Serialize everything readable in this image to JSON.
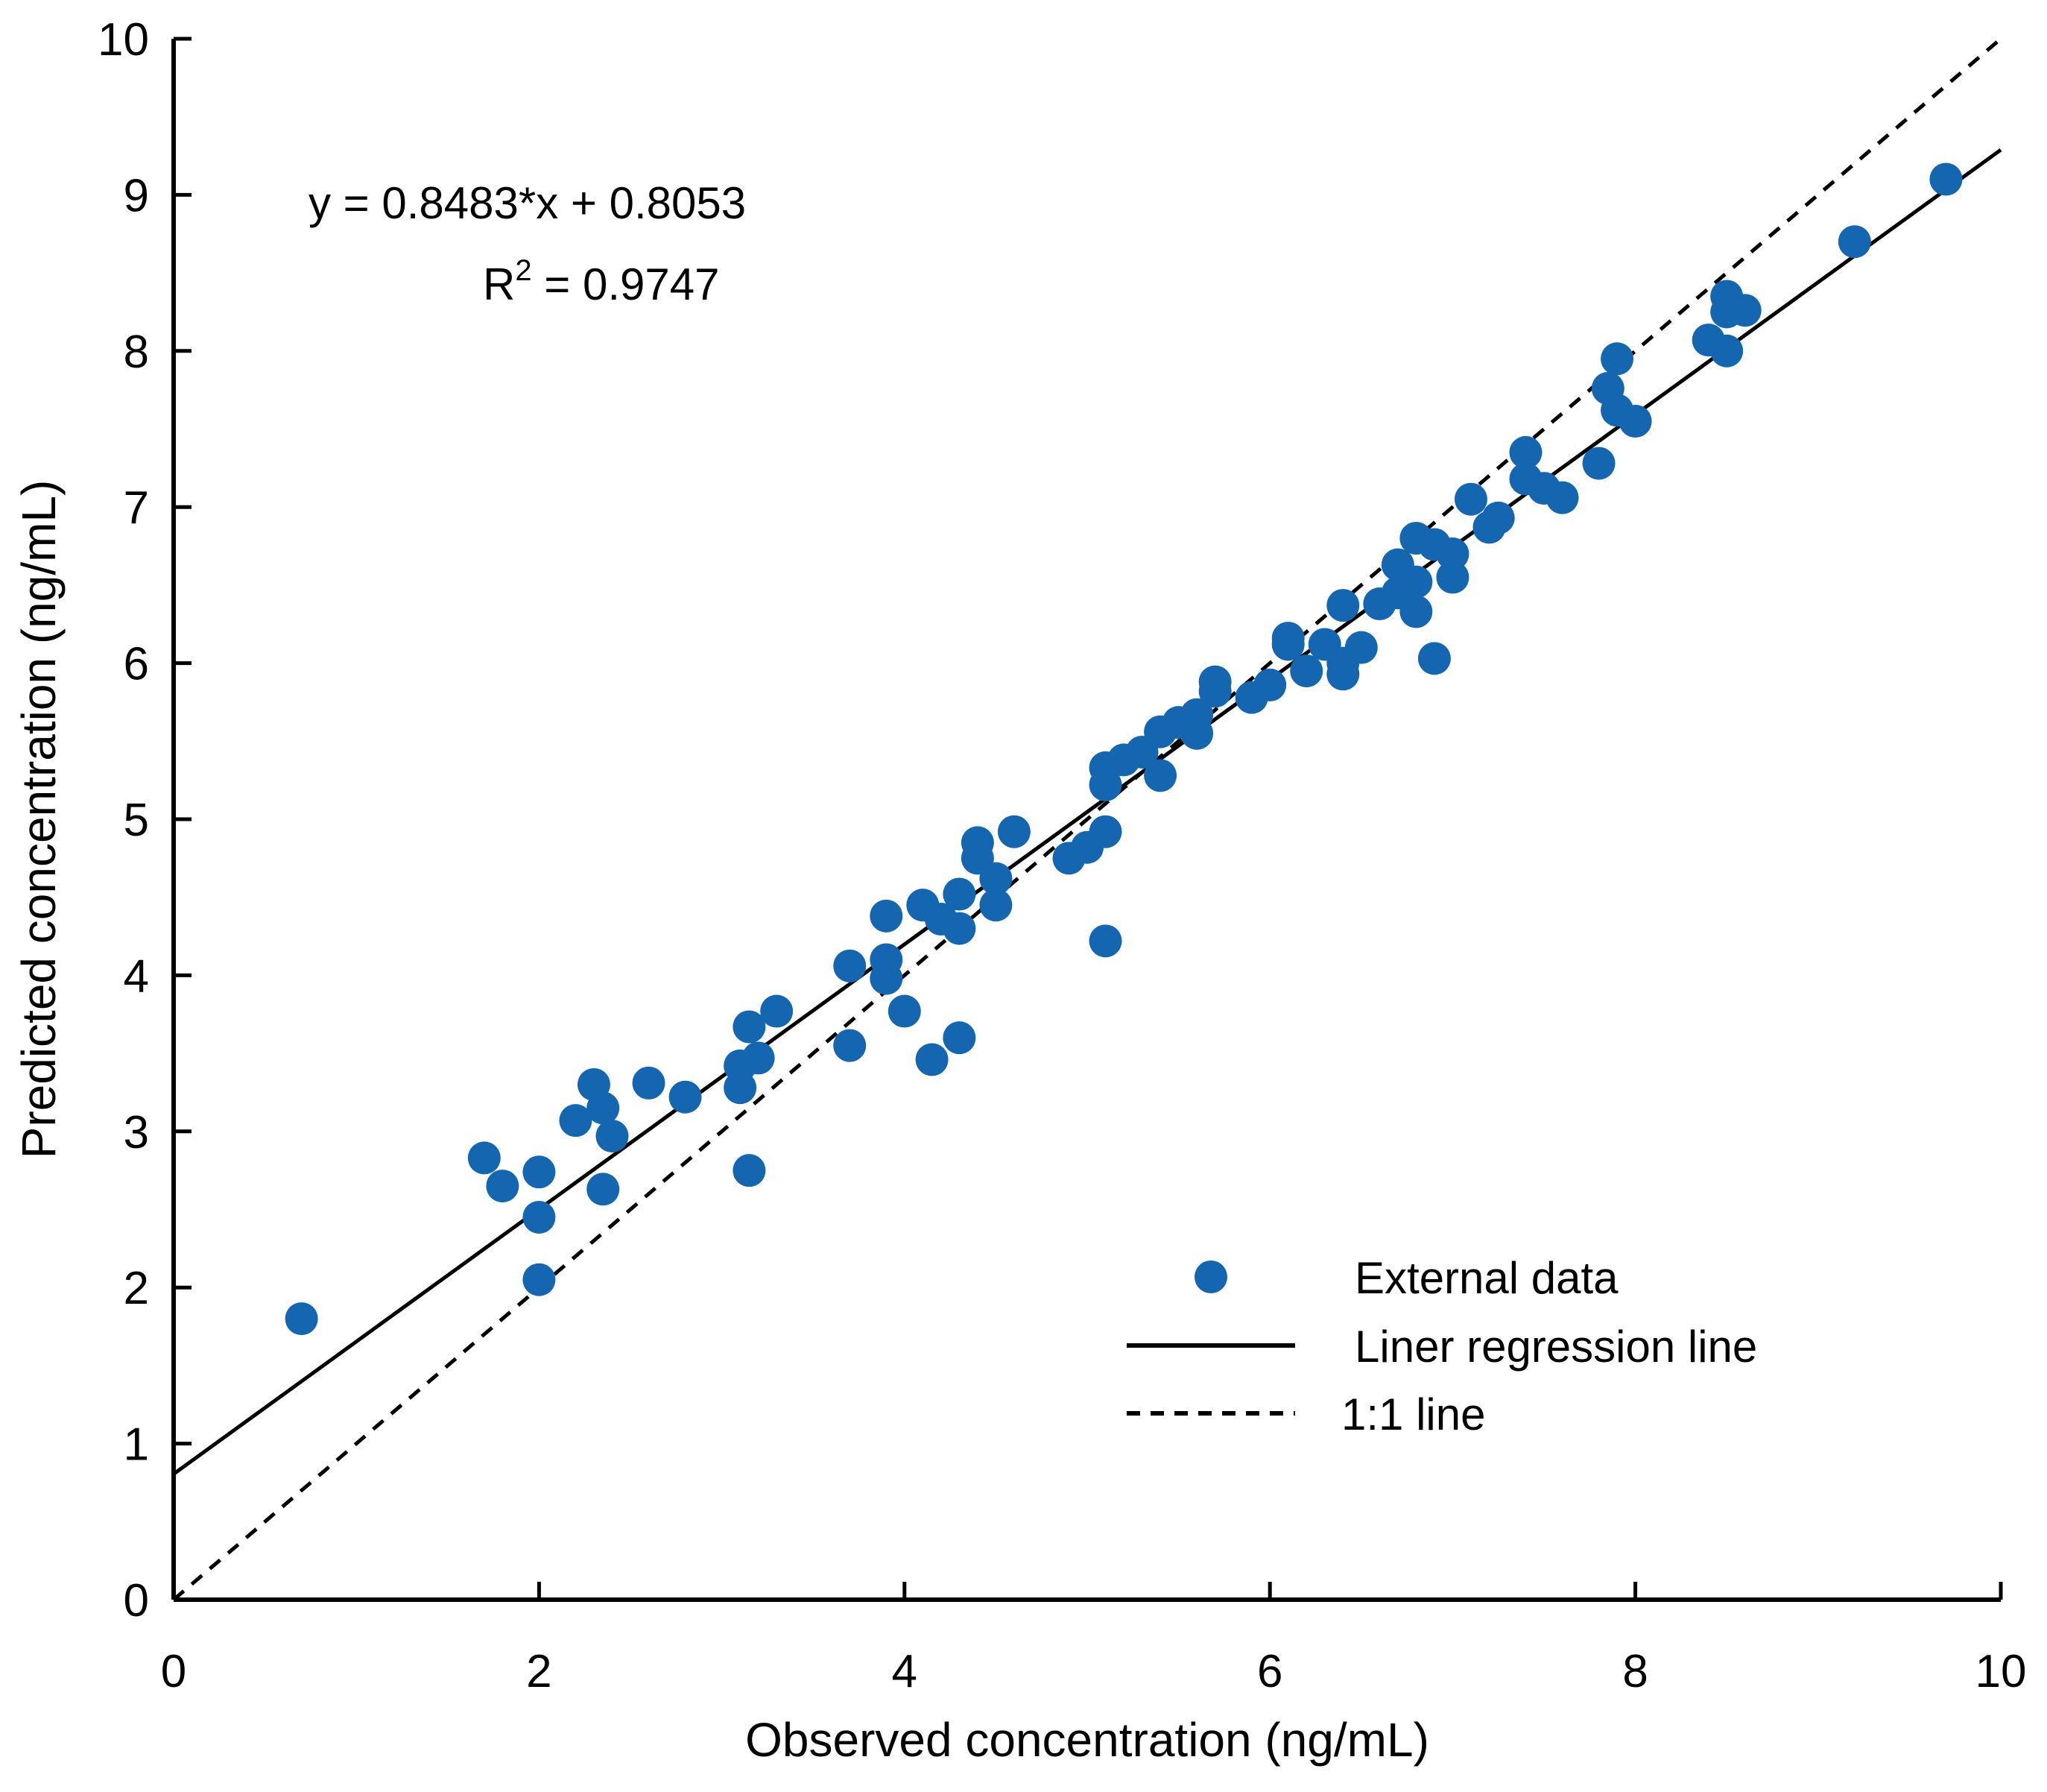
{
  "chart_data": {
    "type": "scatter",
    "xlabel": "Observed concentration (ng/mL)",
    "ylabel": "Predicted concentration (ng/mL)",
    "xlim": [
      0,
      10
    ],
    "ylim": [
      0,
      10
    ],
    "x_ticks": [
      0,
      2,
      4,
      6,
      8,
      10
    ],
    "y_ticks": [
      0,
      1,
      2,
      3,
      4,
      5,
      6,
      7,
      8,
      9,
      10
    ],
    "grid": false,
    "legend_position": "bottom-right",
    "annotation": {
      "equation": "y = 0.8483*x + 0.8053",
      "r2_prefix": "R",
      "r2_superscript": "2",
      "r2_value": " = 0.9747"
    },
    "legend": {
      "scatter_label": "External data",
      "regression_label": "Liner regression line",
      "identity_label": "1:1 line"
    },
    "marker_color": "#1466b0",
    "regression": {
      "slope": 0.8483,
      "intercept": 0.8053
    },
    "series": [
      {
        "name": "External data",
        "points": [
          [
            0.7,
            1.8
          ],
          [
            1.7,
            2.83
          ],
          [
            1.8,
            2.65
          ],
          [
            2.0,
            2.74
          ],
          [
            2.0,
            2.45
          ],
          [
            2.0,
            2.05
          ],
          [
            2.2,
            3.07
          ],
          [
            2.3,
            3.3
          ],
          [
            2.35,
            3.15
          ],
          [
            2.4,
            2.97
          ],
          [
            2.35,
            2.63
          ],
          [
            2.6,
            3.31
          ],
          [
            2.8,
            3.22
          ],
          [
            3.1,
            3.42
          ],
          [
            3.1,
            3.28
          ],
          [
            3.15,
            3.67
          ],
          [
            3.2,
            3.47
          ],
          [
            3.3,
            3.77
          ],
          [
            3.15,
            2.75
          ],
          [
            3.7,
            4.06
          ],
          [
            3.7,
            3.55
          ],
          [
            3.9,
            4.38
          ],
          [
            3.9,
            4.1
          ],
          [
            3.9,
            3.98
          ],
          [
            4.0,
            3.77
          ],
          [
            4.1,
            4.45
          ],
          [
            4.2,
            4.36
          ],
          [
            4.15,
            3.46
          ],
          [
            4.3,
            4.52
          ],
          [
            4.3,
            4.3
          ],
          [
            4.3,
            3.6
          ],
          [
            4.4,
            4.85
          ],
          [
            4.4,
            4.75
          ],
          [
            4.5,
            4.62
          ],
          [
            4.5,
            4.45
          ],
          [
            4.6,
            4.92
          ],
          [
            4.9,
            4.75
          ],
          [
            5.0,
            4.82
          ],
          [
            5.1,
            4.92
          ],
          [
            5.1,
            4.22
          ],
          [
            5.1,
            5.22
          ],
          [
            5.1,
            5.33
          ],
          [
            5.2,
            5.38
          ],
          [
            5.3,
            5.43
          ],
          [
            5.4,
            5.56
          ],
          [
            5.4,
            5.28
          ],
          [
            5.5,
            5.62
          ],
          [
            5.6,
            5.67
          ],
          [
            5.6,
            5.55
          ],
          [
            5.7,
            5.88
          ],
          [
            5.7,
            5.82
          ],
          [
            5.9,
            5.78
          ],
          [
            6.0,
            5.86
          ],
          [
            6.1,
            6.12
          ],
          [
            6.1,
            6.16
          ],
          [
            6.2,
            5.95
          ],
          [
            6.3,
            6.12
          ],
          [
            6.4,
            6.0
          ],
          [
            6.4,
            5.93
          ],
          [
            6.4,
            6.37
          ],
          [
            6.5,
            6.1
          ],
          [
            6.6,
            6.38
          ],
          [
            6.7,
            6.45
          ],
          [
            6.7,
            6.63
          ],
          [
            6.8,
            6.8
          ],
          [
            6.8,
            6.52
          ],
          [
            6.8,
            6.33
          ],
          [
            6.9,
            6.76
          ],
          [
            6.9,
            6.03
          ],
          [
            7.0,
            6.7
          ],
          [
            7.0,
            6.55
          ],
          [
            7.1,
            7.05
          ],
          [
            7.2,
            6.87
          ],
          [
            7.25,
            6.93
          ],
          [
            7.4,
            7.35
          ],
          [
            7.4,
            7.18
          ],
          [
            7.5,
            7.12
          ],
          [
            7.6,
            7.06
          ],
          [
            7.8,
            7.28
          ],
          [
            7.85,
            7.76
          ],
          [
            7.9,
            7.95
          ],
          [
            7.9,
            7.62
          ],
          [
            8.0,
            7.55
          ],
          [
            8.4,
            8.07
          ],
          [
            8.5,
            8.35
          ],
          [
            8.5,
            8.25
          ],
          [
            8.5,
            8.0
          ],
          [
            8.6,
            8.26
          ],
          [
            9.2,
            8.7
          ],
          [
            9.7,
            9.1
          ]
        ]
      }
    ]
  }
}
